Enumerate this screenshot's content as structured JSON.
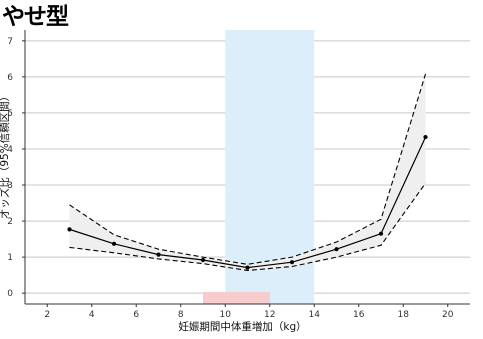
{
  "chart_data": {
    "type": "line",
    "title": "やせ型",
    "xlabel": "妊娠期間中体重増加（kg）",
    "ylabel": "オッズ比（95%信頼区間）",
    "xlim": [
      1,
      21
    ],
    "ylim": [
      -0.3,
      7.3
    ],
    "x_ticks": [
      2,
      4,
      6,
      8,
      10,
      12,
      14,
      16,
      18,
      20
    ],
    "y_ticks": [
      0,
      1,
      2,
      3,
      4,
      5,
      6,
      7
    ],
    "grid": "horizontal",
    "highlight_band": {
      "x": [
        10,
        14
      ],
      "color": "#dbeef9"
    },
    "highlight_marker": {
      "x": [
        9,
        12
      ],
      "color": "#f6cccc"
    },
    "series": [
      {
        "style": "solid",
        "x": [
          3,
          5,
          7,
          9,
          11,
          13,
          15,
          17,
          19
        ],
        "values": [
          1.77,
          1.37,
          1.07,
          0.92,
          0.71,
          0.86,
          1.22,
          1.65,
          4.33
        ]
      },
      {
        "style": "dashed",
        "x": [
          3,
          5,
          7,
          9,
          11,
          13,
          15,
          17,
          19
        ],
        "values": [
          2.45,
          1.62,
          1.22,
          1.0,
          0.8,
          1.0,
          1.42,
          2.05,
          6.08
        ]
      },
      {
        "style": "dashed",
        "x": [
          3,
          5,
          7,
          9,
          11,
          13,
          15,
          17,
          19
        ],
        "values": [
          1.27,
          1.12,
          0.95,
          0.82,
          0.63,
          0.74,
          1.0,
          1.33,
          3.05
        ]
      }
    ],
    "colors": {
      "line": "#000000",
      "ribbon": "#efefef",
      "grid": "#c8c8c8",
      "axis": "#333333"
    }
  }
}
